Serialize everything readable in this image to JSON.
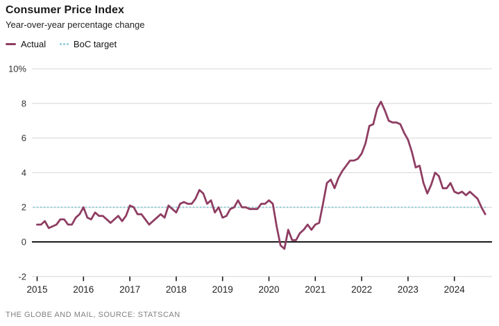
{
  "header": {
    "title": "Consumer Price Index",
    "subtitle": "Year-over-year percentage change"
  },
  "legend": {
    "actual": "Actual",
    "boc_target": "BoC target"
  },
  "footer": {
    "source": "THE GLOBE AND MAIL, SOURCE: STATSCAN"
  },
  "colors": {
    "actual_line": "#8e3d62",
    "target_line": "#92cfdd",
    "gridline": "#d6d6d6",
    "zero_line": "#1a1a1a"
  },
  "chart_data": {
    "type": "line",
    "title": "Consumer Price Index",
    "subtitle": "Year-over-year percentage change",
    "xlabel": "",
    "ylabel": "Year-over-year percentage change",
    "x_start": "2015-01",
    "x_end": "2024-09",
    "frequency": "monthly",
    "ylim": [
      -2,
      10
    ],
    "grid": true,
    "legend_position": "top-left",
    "x_ticks": [
      "2015",
      "2016",
      "2017",
      "2018",
      "2019",
      "2020",
      "2021",
      "2022",
      "2023",
      "2024"
    ],
    "y_ticks": [
      {
        "value": -2,
        "label": "-2"
      },
      {
        "value": 0,
        "label": "0"
      },
      {
        "value": 2,
        "label": "2"
      },
      {
        "value": 4,
        "label": "4"
      },
      {
        "value": 6,
        "label": "6"
      },
      {
        "value": 8,
        "label": "8"
      },
      {
        "value": 10,
        "label": "10%"
      }
    ],
    "target_line": {
      "name": "BoC target",
      "value": 2,
      "color": "#92cfdd"
    },
    "series": [
      {
        "name": "Actual",
        "color": "#8e3d62",
        "values": [
          1.0,
          1.0,
          1.2,
          0.8,
          0.9,
          1.0,
          1.3,
          1.3,
          1.0,
          1.0,
          1.4,
          1.6,
          2.0,
          1.4,
          1.3,
          1.7,
          1.5,
          1.5,
          1.3,
          1.1,
          1.3,
          1.5,
          1.2,
          1.5,
          2.1,
          2.0,
          1.6,
          1.6,
          1.3,
          1.0,
          1.2,
          1.4,
          1.6,
          1.4,
          2.1,
          1.9,
          1.7,
          2.2,
          2.3,
          2.2,
          2.2,
          2.5,
          3.0,
          2.8,
          2.2,
          2.4,
          1.7,
          2.0,
          1.4,
          1.5,
          1.9,
          2.0,
          2.4,
          2.0,
          2.0,
          1.9,
          1.9,
          1.9,
          2.2,
          2.2,
          2.4,
          2.2,
          0.9,
          -0.2,
          -0.4,
          0.7,
          0.1,
          0.1,
          0.5,
          0.7,
          1.0,
          0.7,
          1.0,
          1.1,
          2.2,
          3.4,
          3.6,
          3.1,
          3.7,
          4.1,
          4.4,
          4.7,
          4.7,
          4.8,
          5.1,
          5.7,
          6.7,
          6.8,
          7.7,
          8.1,
          7.6,
          7.0,
          6.9,
          6.9,
          6.8,
          6.3,
          5.9,
          5.2,
          4.3,
          4.4,
          3.4,
          2.8,
          3.3,
          4.0,
          3.8,
          3.1,
          3.1,
          3.4,
          2.9,
          2.8,
          2.9,
          2.7,
          2.9,
          2.7,
          2.5,
          2.0,
          1.6
        ]
      }
    ]
  }
}
